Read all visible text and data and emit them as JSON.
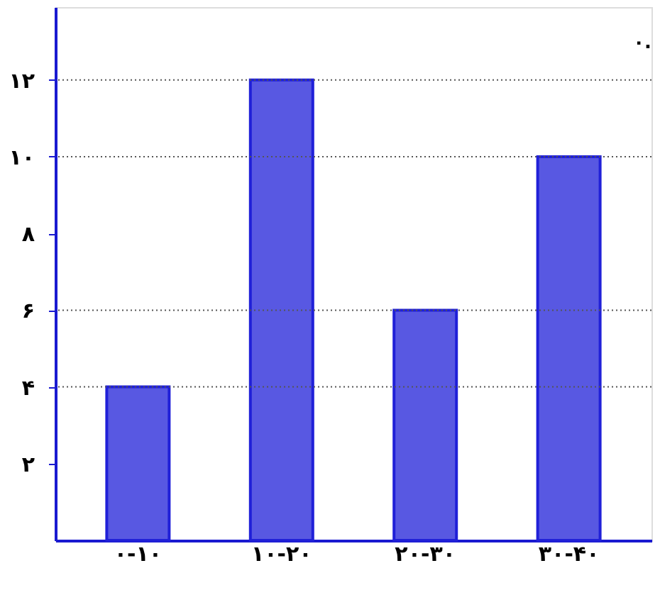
{
  "chart_data": {
    "type": "bar",
    "categories": [
      "۰-۱۰",
      "۱۰-۲۰",
      "۲۰-۳۰",
      "۳۰-۴۰"
    ],
    "values": [
      4,
      12,
      6,
      10
    ],
    "color": "#2020d8",
    "ylim": [
      0,
      13.9
    ],
    "yticks": [
      {
        "value": 2,
        "label": "۲"
      },
      {
        "value": 4,
        "label": "۴"
      },
      {
        "value": 6,
        "label": "۶"
      },
      {
        "value": 8,
        "label": "۸"
      },
      {
        "value": 10,
        "label": "۱۰"
      },
      {
        "value": 12,
        "label": "۱۲"
      }
    ],
    "ref_lines": [
      {
        "axis": "y",
        "value": 4,
        "label": null,
        "line_style": "dotted"
      },
      {
        "axis": "y",
        "value": 12,
        "label": null,
        "line_style": "dotted"
      },
      {
        "axis": "y",
        "value": 6,
        "label": null,
        "line_style": "dotted"
      },
      {
        "axis": "y",
        "value": 10,
        "label": null,
        "line_style": "dotted"
      }
    ],
    "annotations": [
      "۰."
    ],
    "grid": false
  }
}
